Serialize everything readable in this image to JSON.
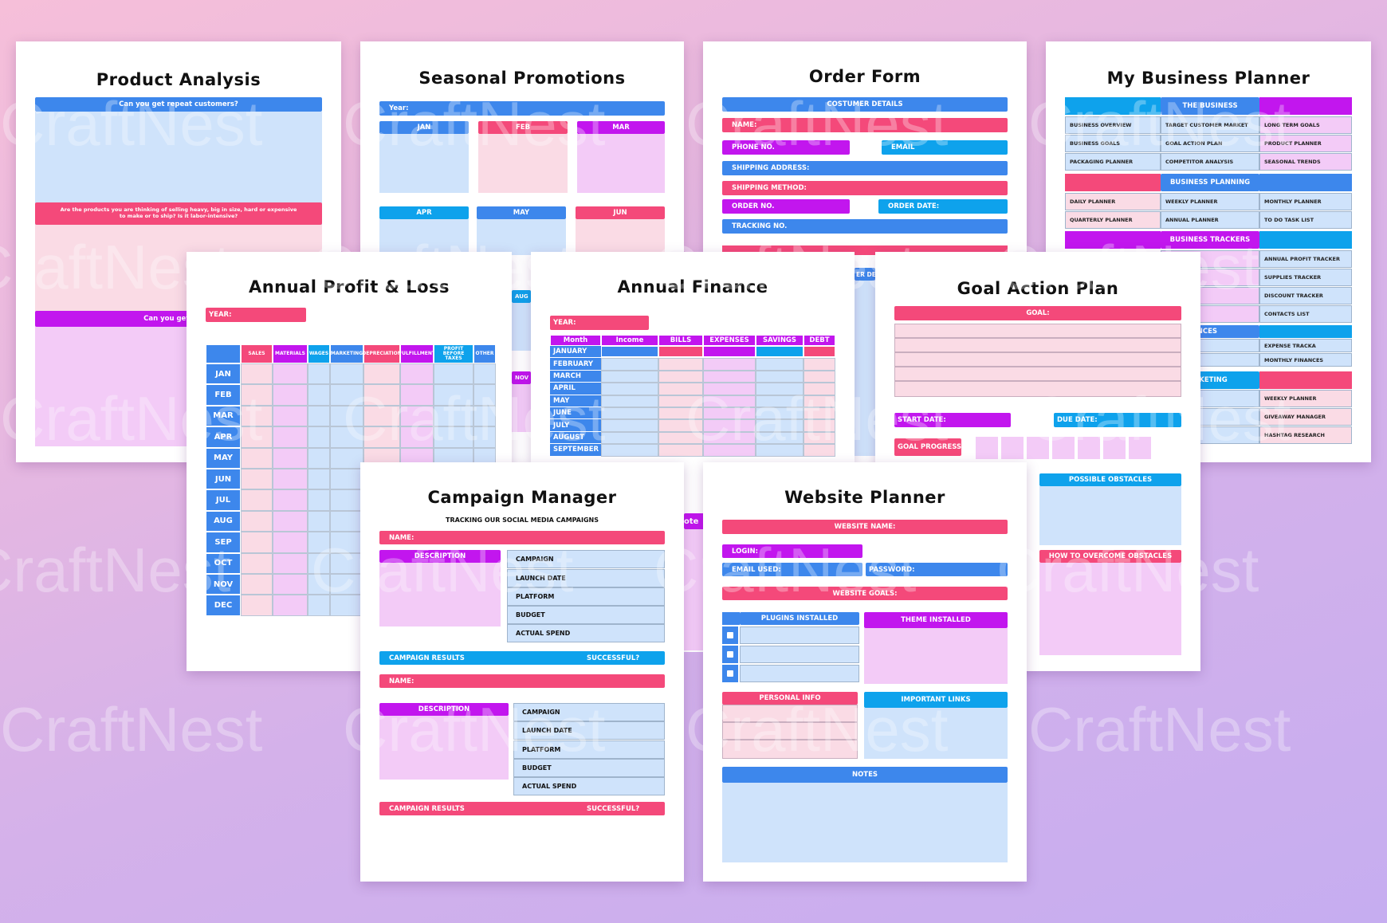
{
  "watermark": "CraftNest",
  "product_analysis": {
    "title": "Product Analysis",
    "q1": "Can you get repeat customers?",
    "q2": "Are the products you are thinking of selling heavy, big in size, hard or expensive to make or to ship? Is it labor-intensive?",
    "q3": "Can you get repea"
  },
  "seasonal_promotions": {
    "title": "Seasonal Promotions",
    "year_label": "Year:",
    "months": [
      "JAN",
      "FEB",
      "MAR",
      "APR",
      "MAY",
      "JUN"
    ],
    "partial_labels": [
      "AUG",
      "NOV"
    ]
  },
  "order_form": {
    "title": "Order Form",
    "header": "COSTUMER DETAILS",
    "name": "NAME:",
    "phone": "PHONE NO.",
    "email": "EMAIL",
    "shipping_address": "SHIPPING ADDRESS:",
    "shipping_method": "SHIPPING METHOD:",
    "order_no": "ORDER NO.",
    "order_date": "ORDER DATE:",
    "tracking": "TRACKING NO.",
    "partial_label": "ER DET"
  },
  "business_planner": {
    "title": "My Business Planner",
    "section1": {
      "header": "THE BUSINESS",
      "rows": [
        [
          "BUSINESS OVERVIEW",
          "TARGET CUSTOMER MARKET",
          "LONG TERM GOALS"
        ],
        [
          "BUSINESS GOALS",
          "GOAL ACTION PLAN",
          "PRODUCT PLANNER"
        ],
        [
          "PACKAGING PLANNER",
          "COMPETITOR ANALYSIS",
          "SEASONAL TRENDS"
        ]
      ]
    },
    "section2": {
      "header": "BUSINESS PLANNING",
      "rows": [
        [
          "DAILY PLANNER",
          "WEEKLY PLANNER",
          "MONTHLY PLANNER"
        ],
        [
          "QUARTERLY PLANNER",
          "ANNUAL PLANNER",
          "TO DO TASK LIST"
        ]
      ]
    },
    "section3": {
      "header": "BUSINESS TRACKERS",
      "rows": [
        [
          "TORY",
          "ANNUAL PROFIT TRACKER"
        ],
        [
          "ACKER",
          "SUPPLIES TRACKER"
        ],
        [
          "E",
          "DISCOUNT TRACKER"
        ],
        [
          "",
          "CONTACTS LIST"
        ]
      ]
    },
    "section4": {
      "header": "S FINANCES",
      "rows": [
        [
          "KE",
          "EXPENSE TRACKA"
        ],
        [
          "NS",
          "MONTHLY FINANCES"
        ]
      ]
    },
    "section5": {
      "header": "IA MARKETING",
      "rows": [
        [
          "PLANNER",
          "WEEKLY PLANNER"
        ],
        [
          "NAGER",
          "GIVEAWAY MANAGER"
        ],
        [
          "WTH",
          "HASHTAG RESEARCH"
        ]
      ]
    }
  },
  "annual_pl": {
    "title": "Annual Profit & Loss",
    "year_label": "YEAR:",
    "columns": [
      "SALES",
      "MATERIALS",
      "WAGES",
      "MARKETING",
      "DEPRECIATION",
      "FULFILLMENT",
      "PROFIT BEFORE TAXES",
      "OTHER"
    ],
    "months": [
      "JAN",
      "FEB",
      "MAR",
      "APR",
      "MAY",
      "JUN",
      "JUL",
      "AUG",
      "SEP",
      "OCT",
      "NOV",
      "DEC"
    ]
  },
  "annual_finance": {
    "title": "Annual Finance",
    "year_label": "YEAR:",
    "columns": [
      "Month",
      "Income",
      "BILLS",
      "EXPENSES",
      "SAVINGS",
      "DEBT"
    ],
    "months": [
      "JANUARY",
      "FEBRUARY",
      "MARCH",
      "APRIL",
      "MAY",
      "JUNE",
      "JULY",
      "AUGUST",
      "SEPTEMBER"
    ],
    "partial_label": "ote"
  },
  "goal_action": {
    "title": "Goal Action Plan",
    "goal": "GOAL:",
    "start_date": "START DATE:",
    "due_date": "DUE DATE:",
    "progress": "GOAL PROGRESS:",
    "obstacles": "POSSIBLE OBSTACLES",
    "overcome": "HOW TO OVERCOME OBSTACLES"
  },
  "campaign_manager": {
    "title": "Campaign Manager",
    "subtitle": "TRACKING OUR SOCIAL MEDIA CAMPAIGNS",
    "name": "NAME:",
    "description": "DESCRIPTION",
    "fields": [
      "CAMPAIGN",
      "LAUNCH DATE",
      "PLATFORM",
      "BUDGET",
      "ACTUAL SPEND"
    ],
    "results": "CAMPAIGN RESULTS",
    "successful": "SUCCESSFUL?"
  },
  "website_planner": {
    "title": "Website Planner",
    "website_name": "WEBSITE NAME:",
    "login": "LOGIN:",
    "email_used": "EMAIL USED:",
    "password": "PASSWORD:",
    "website_goals": "WEBSITE GOALS:",
    "plugins": "PLUGINS INSTALLED",
    "theme": "THEME INSTALLED",
    "personal_info": "PERSONAL INFO",
    "links": "IMPORTANT LINKS",
    "notes": "NOTES"
  },
  "colors": {
    "blue": "#3d87ec",
    "pink": "#f4497a",
    "purple": "#c216ee",
    "sky": "#0ea2ec",
    "light_blue": "#cfe3fb",
    "light_pink": "#fadbe5",
    "light_purple": "#f3cbf7"
  }
}
